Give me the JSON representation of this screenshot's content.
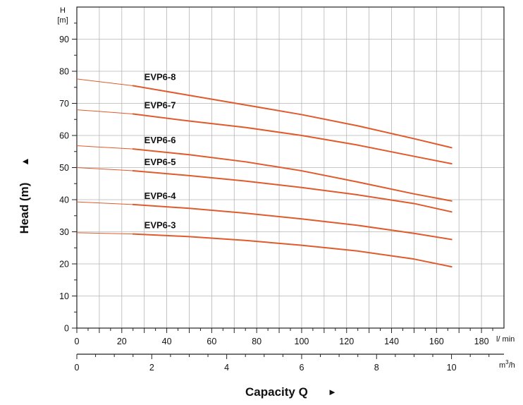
{
  "chart_data": {
    "type": "line",
    "y_axis": {
      "unit_symbol": "H",
      "unit": "[m]",
      "title": "Head (m)",
      "title_arrow": "▲",
      "range": [
        0,
        100
      ],
      "ticks": [
        0,
        10,
        20,
        30,
        40,
        50,
        60,
        70,
        80,
        90
      ]
    },
    "x_axis_lmin": {
      "unit": "l/ min",
      "range": [
        0,
        190
      ],
      "ticks": [
        0,
        20,
        40,
        60,
        80,
        100,
        120,
        140,
        160,
        180
      ]
    },
    "x_axis_m3h": {
      "unit_base": "m",
      "unit_sup": "3",
      "unit_suffix": "/h",
      "range": [
        0,
        11.4
      ],
      "ticks": [
        0,
        2,
        4,
        6,
        8,
        10
      ]
    },
    "x_title": "Capacity Q",
    "x_title_arrow": "►",
    "grid": true,
    "series": [
      {
        "name": "EVP6-8",
        "color": "#e05a2b",
        "x": [
          0,
          25,
          50,
          75,
          100,
          125,
          150,
          166.7
        ],
        "y": [
          77.6,
          75.5,
          72.5,
          69.5,
          66.5,
          63.0,
          59.0,
          56.2
        ]
      },
      {
        "name": "EVP6-7",
        "color": "#e05a2b",
        "x": [
          0,
          25,
          50,
          75,
          100,
          125,
          150,
          166.7
        ],
        "y": [
          68.0,
          66.7,
          64.5,
          62.5,
          60.0,
          57.0,
          53.5,
          51.2
        ]
      },
      {
        "name": "EVP6-6",
        "color": "#e05a2b",
        "x": [
          0,
          25,
          50,
          75,
          100,
          125,
          150,
          166.7
        ],
        "y": [
          56.8,
          55.8,
          54.0,
          51.8,
          49.0,
          45.5,
          41.8,
          39.6
        ]
      },
      {
        "name": "EVP6-5",
        "color": "#e05a2b",
        "x": [
          0,
          25,
          50,
          75,
          100,
          125,
          150,
          166.7
        ],
        "y": [
          50.0,
          49.0,
          47.5,
          45.8,
          43.8,
          41.5,
          38.8,
          36.2
        ]
      },
      {
        "name": "EVP6-4",
        "color": "#e05a2b",
        "x": [
          0,
          25,
          50,
          75,
          100,
          125,
          150,
          166.7
        ],
        "y": [
          39.3,
          38.5,
          37.3,
          35.8,
          34.0,
          32.0,
          29.5,
          27.6
        ]
      },
      {
        "name": "EVP6-3",
        "color": "#e05a2b",
        "x": [
          0,
          25,
          50,
          75,
          100,
          125,
          150,
          166.7
        ],
        "y": [
          29.7,
          29.3,
          28.5,
          27.3,
          25.8,
          24.0,
          21.5,
          19.1
        ]
      }
    ]
  }
}
